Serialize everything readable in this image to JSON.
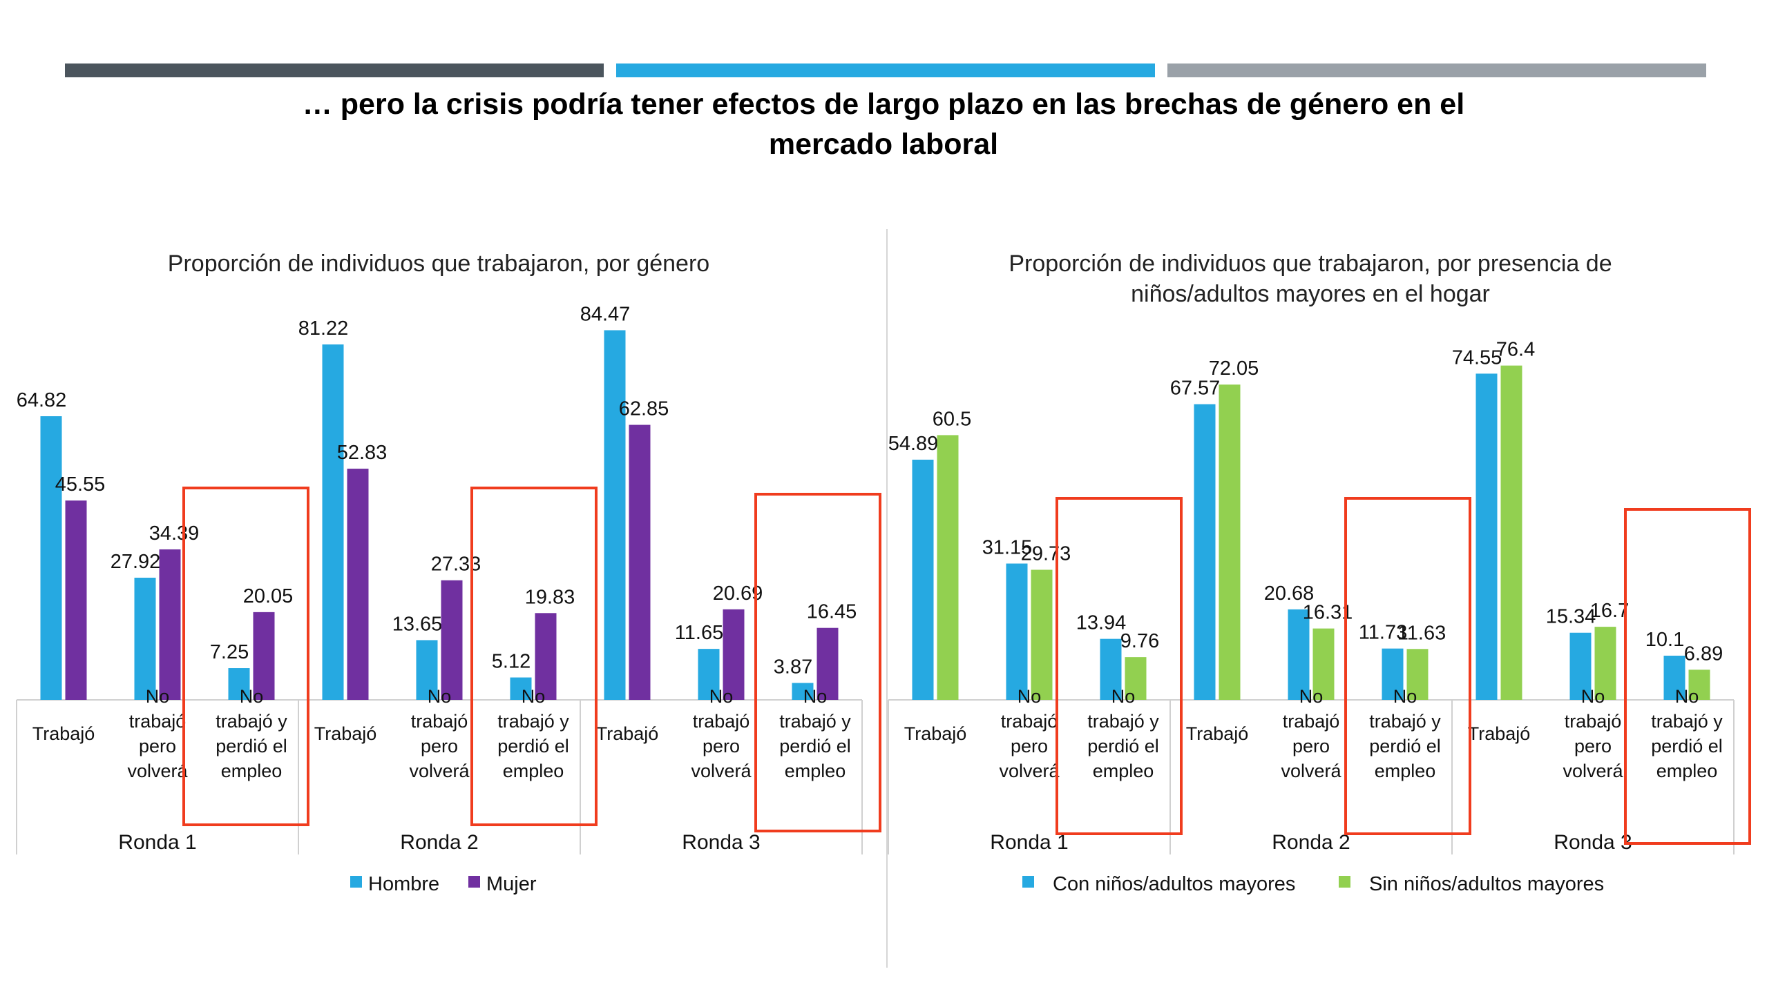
{
  "header": {
    "title_line1": "… pero la crisis podría tener efectos de largo plazo en las brechas de género en el",
    "title_line2": "mercado laboral",
    "bar_colors": [
      "#4b555d",
      "#26a9e1",
      "#9aa1a8"
    ]
  },
  "chart_data": [
    {
      "type": "bar",
      "title": "Proporción de individuos que trabajaron, por género",
      "categories": [
        "Trabajó",
        "No trabajó pero volverá",
        "No trabajó y perdió el empleo",
        "Trabajó",
        "No trabajó pero volverá",
        "No trabajó y perdió el empleo",
        "Trabajó",
        "No trabajó pero volverá",
        "No trabajó y perdió el empleo"
      ],
      "category_lines": [
        [
          "Trabajó"
        ],
        [
          "No",
          "trabajó",
          "pero",
          "volverá"
        ],
        [
          "No",
          "trabajó y",
          "perdió el",
          "empleo"
        ],
        [
          "Trabajó"
        ],
        [
          "No",
          "trabajó",
          "pero",
          "volverá"
        ],
        [
          "No",
          "trabajó y",
          "perdió el",
          "empleo"
        ],
        [
          "Trabajó"
        ],
        [
          "No",
          "trabajó",
          "pero",
          "volverá"
        ],
        [
          "No",
          "trabajó y",
          "perdió el",
          "empleo"
        ]
      ],
      "groups": [
        "Ronda 1",
        "Ronda 2",
        "Ronda 3"
      ],
      "series": [
        {
          "name": "Hombre",
          "color": "#26a9e1",
          "values": [
            64.82,
            27.92,
            7.25,
            81.22,
            13.65,
            5.12,
            84.47,
            11.65,
            3.87
          ]
        },
        {
          "name": "Mujer",
          "color": "#7030a0",
          "values": [
            45.55,
            34.39,
            20.05,
            52.83,
            27.33,
            19.83,
            62.85,
            20.69,
            16.45
          ]
        }
      ],
      "highlighted_categories": [
        "No trabajó y perdió el empleo"
      ],
      "highlight_color": "#f03c1e",
      "ylim": [
        0,
        90
      ]
    },
    {
      "type": "bar",
      "title": "Proporción de individuos que trabajaron, por presencia de niños/adultos mayores en el hogar",
      "title_lines": [
        "Proporción de individuos que trabajaron, por presencia de",
        "niños/adultos mayores en el hogar"
      ],
      "categories": [
        "Trabajó",
        "No trabajó pero volverá",
        "No trabajó y perdió el empleo",
        "Trabajó",
        "No trabajó pero volverá",
        "No trabajó y perdió el empleo",
        "Trabajó",
        "No trabajó pero volverá",
        "No trabajó y perdió el empleo"
      ],
      "category_lines": [
        [
          "Trabajó"
        ],
        [
          "No",
          "trabajó",
          "pero",
          "volverá"
        ],
        [
          "No",
          "trabajó y",
          "perdió el",
          "empleo"
        ],
        [
          "Trabajó"
        ],
        [
          "No",
          "trabajó",
          "pero",
          "volverá"
        ],
        [
          "No",
          "trabajó y",
          "perdió el",
          "empleo"
        ],
        [
          "Trabajó"
        ],
        [
          "No",
          "trabajó",
          "pero",
          "volverá"
        ],
        [
          "No",
          "trabajó y",
          "perdió el",
          "empleo"
        ]
      ],
      "groups": [
        "Ronda 1",
        "Ronda 2",
        "Ronda 3"
      ],
      "series": [
        {
          "name": "Con niños/adultos mayores",
          "color": "#26a9e1",
          "values": [
            54.89,
            31.15,
            13.94,
            67.57,
            20.68,
            11.73,
            74.55,
            15.34,
            10.1
          ]
        },
        {
          "name": "Sin niños/adultos mayores",
          "color": "#92d050",
          "values": [
            60.5,
            29.73,
            9.76,
            72.05,
            16.31,
            11.63,
            76.4,
            16.7,
            6.89
          ]
        }
      ],
      "highlighted_categories": [
        "No trabajó y perdió el empleo"
      ],
      "highlight_color": "#f03c1e",
      "ylim": [
        0,
        90
      ]
    }
  ]
}
